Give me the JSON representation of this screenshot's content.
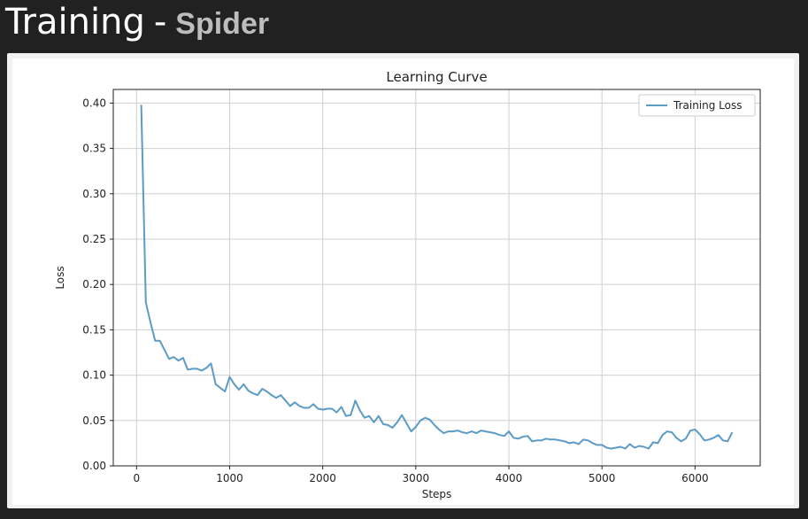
{
  "header": {
    "title": "Training",
    "separator": "-",
    "subtitle": "Spider"
  },
  "colors": {
    "background": "#212121",
    "series": "#5b9bc6",
    "grid": "#cfcfcf"
  },
  "chart_data": {
    "type": "line",
    "title": "Learning Curve",
    "xlabel": "Steps",
    "ylabel": "Loss",
    "xlim": [
      -250,
      6700
    ],
    "ylim": [
      0.0,
      0.415
    ],
    "grid": true,
    "legend_position": "top-right",
    "xticks": [
      0,
      1000,
      2000,
      3000,
      4000,
      5000,
      6000
    ],
    "yticks": [
      0.0,
      0.05,
      0.1,
      0.15,
      0.2,
      0.25,
      0.3,
      0.35,
      0.4
    ],
    "xtick_labels": [
      "0",
      "1000",
      "2000",
      "3000",
      "4000",
      "5000",
      "6000"
    ],
    "ytick_labels": [
      "0.00",
      "0.05",
      "0.10",
      "0.15",
      "0.20",
      "0.25",
      "0.30",
      "0.35",
      "0.40"
    ],
    "series": [
      {
        "name": "Training Loss",
        "x": [
          50,
          100,
          150,
          200,
          250,
          300,
          350,
          400,
          450,
          500,
          550,
          600,
          650,
          700,
          750,
          800,
          850,
          900,
          950,
          1000,
          1050,
          1100,
          1150,
          1200,
          1250,
          1300,
          1350,
          1400,
          1450,
          1500,
          1550,
          1600,
          1650,
          1700,
          1750,
          1800,
          1850,
          1900,
          1950,
          2000,
          2050,
          2100,
          2150,
          2200,
          2250,
          2300,
          2350,
          2400,
          2450,
          2500,
          2550,
          2600,
          2650,
          2700,
          2750,
          2800,
          2850,
          2900,
          2950,
          3000,
          3050,
          3100,
          3150,
          3200,
          3250,
          3300,
          3350,
          3400,
          3450,
          3500,
          3550,
          3600,
          3650,
          3700,
          3750,
          3800,
          3850,
          3900,
          3950,
          4000,
          4050,
          4100,
          4150,
          4200,
          4250,
          4300,
          4350,
          4400,
          4450,
          4500,
          4550,
          4600,
          4650,
          4700,
          4750,
          4800,
          4850,
          4900,
          4950,
          5000,
          5050,
          5100,
          5150,
          5200,
          5250,
          5300,
          5350,
          5400,
          5450,
          5500,
          5550,
          5600,
          5650,
          5700,
          5750,
          5800,
          5850,
          5900,
          5950,
          6000,
          6050,
          6100,
          6150,
          6200,
          6250,
          6300,
          6350,
          6400
        ],
        "y": [
          0.398,
          0.18,
          0.158,
          0.138,
          0.138,
          0.128,
          0.118,
          0.12,
          0.116,
          0.119,
          0.106,
          0.107,
          0.107,
          0.105,
          0.108,
          0.113,
          0.09,
          0.086,
          0.082,
          0.098,
          0.09,
          0.084,
          0.09,
          0.083,
          0.08,
          0.078,
          0.085,
          0.082,
          0.078,
          0.075,
          0.078,
          0.072,
          0.066,
          0.07,
          0.066,
          0.064,
          0.064,
          0.068,
          0.063,
          0.062,
          0.063,
          0.063,
          0.059,
          0.065,
          0.055,
          0.056,
          0.072,
          0.061,
          0.053,
          0.055,
          0.048,
          0.055,
          0.046,
          0.045,
          0.042,
          0.048,
          0.056,
          0.047,
          0.038,
          0.043,
          0.05,
          0.053,
          0.051,
          0.045,
          0.04,
          0.036,
          0.038,
          0.038,
          0.039,
          0.037,
          0.036,
          0.038,
          0.036,
          0.039,
          0.038,
          0.037,
          0.036,
          0.034,
          0.033,
          0.038,
          0.031,
          0.03,
          0.032,
          0.033,
          0.027,
          0.028,
          0.028,
          0.03,
          0.029,
          0.029,
          0.028,
          0.027,
          0.025,
          0.026,
          0.024,
          0.029,
          0.028,
          0.025,
          0.023,
          0.023,
          0.02,
          0.019,
          0.02,
          0.021,
          0.019,
          0.024,
          0.02,
          0.022,
          0.021,
          0.019,
          0.026,
          0.025,
          0.034,
          0.038,
          0.037,
          0.031,
          0.027,
          0.03,
          0.039,
          0.04,
          0.035,
          0.028,
          0.029,
          0.031,
          0.034,
          0.028,
          0.027,
          0.037
        ]
      }
    ]
  }
}
